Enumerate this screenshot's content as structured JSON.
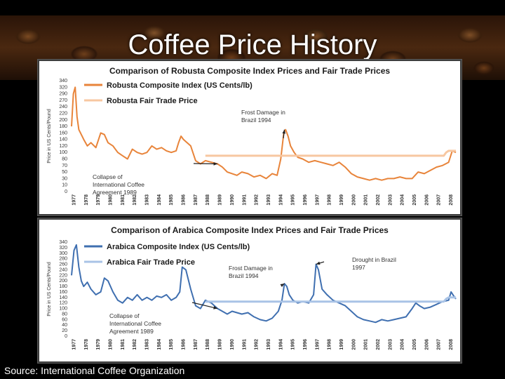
{
  "slide": {
    "title": "Coffee Price History",
    "source": "Source: International Coffee Organization"
  },
  "chart_data": [
    {
      "type": "line",
      "title": "Comparison of Robusta Composite Index Prices and Fair Trade Prices",
      "ylabel": "Price in US Cents/Pound",
      "xlabel": "",
      "ylim": [
        0,
        340
      ],
      "yticks": [
        0,
        10,
        30,
        50,
        70,
        80,
        100,
        120,
        140,
        160,
        180,
        200,
        220,
        240,
        270,
        290,
        320,
        340
      ],
      "xticks": [
        "1977",
        "1978",
        "1979",
        "1980",
        "1981",
        "1982",
        "1983",
        "1984",
        "1985",
        "1986",
        "1987",
        "1988",
        "1989",
        "1990",
        "1991",
        "1992",
        "1993",
        "1994",
        "1995",
        "1996",
        "1997",
        "1998",
        "1999",
        "2000",
        "2001",
        "2002",
        "2003",
        "2004",
        "2005",
        "2006",
        "2007",
        "2008"
      ],
      "legend_position": "top-left",
      "grid": false,
      "series": [
        {
          "name": "Robusta Composite Index (US Cents/lb)",
          "color": "#e8843a",
          "x": [
            1977.0,
            1977.15,
            1977.3,
            1977.45,
            1977.6,
            1977.8,
            1978.0,
            1978.3,
            1978.6,
            1979.0,
            1979.4,
            1979.7,
            1980.0,
            1980.4,
            1980.8,
            1981.2,
            1981.6,
            1982.0,
            1982.4,
            1982.8,
            1983.2,
            1983.6,
            1984.0,
            1984.4,
            1984.8,
            1985.2,
            1985.6,
            1985.8,
            1986.0,
            1986.2,
            1986.5,
            1986.8,
            1987.2,
            1987.6,
            1988.0,
            1988.5,
            1989.0,
            1989.4,
            1989.8,
            1990.2,
            1990.6,
            1991.0,
            1991.5,
            1992.0,
            1992.5,
            1993.0,
            1993.5,
            1993.9,
            1994.2,
            1994.45,
            1994.6,
            1994.8,
            1995.0,
            1995.3,
            1995.6,
            1996.0,
            1996.5,
            1997.0,
            1997.5,
            1998.0,
            1998.5,
            1999.0,
            1999.5,
            2000.0,
            2000.5,
            2001.0,
            2001.5,
            2002.0,
            2002.5,
            2003.0,
            2003.5,
            2004.0,
            2004.5,
            2005.0,
            2005.5,
            2006.0,
            2006.5,
            2007.0,
            2007.5,
            2008.0,
            2008.3,
            2008.6
          ],
          "y": [
            200,
            300,
            320,
            230,
            190,
            175,
            160,
            140,
            150,
            135,
            180,
            175,
            150,
            140,
            120,
            110,
            100,
            130,
            120,
            115,
            120,
            140,
            130,
            135,
            125,
            120,
            125,
            150,
            170,
            160,
            150,
            140,
            95,
            85,
            95,
            90,
            85,
            75,
            60,
            55,
            50,
            60,
            55,
            45,
            50,
            40,
            55,
            50,
            100,
            180,
            190,
            170,
            140,
            120,
            105,
            100,
            90,
            95,
            90,
            85,
            80,
            90,
            75,
            55,
            45,
            40,
            35,
            40,
            35,
            40,
            40,
            45,
            40,
            40,
            60,
            55,
            65,
            75,
            80,
            90,
            125,
            120
          ]
        },
        {
          "name": "Robusta Fair Trade Price",
          "color": "#f7c7a1",
          "x": [
            1988.0,
            2007.6,
            2007.8,
            2008.0,
            2008.6
          ],
          "y": [
            110,
            110,
            120,
            125,
            125
          ]
        }
      ],
      "annotations": [
        {
          "text": [
            "Frost Damage in",
            "Brazil 1994"
          ],
          "x": 1994.5,
          "y": 190
        },
        {
          "text": [
            "Collapse of",
            "International Coffee",
            "Agreement 1989"
          ],
          "x": 1989.0,
          "y": 85
        }
      ]
    },
    {
      "type": "line",
      "title": "Comparison of Arabica Composite Index Prices and Fair Trade Prices",
      "ylabel": "Price in US Cents/Pound",
      "xlabel": "",
      "ylim": [
        0,
        340
      ],
      "yticks": [
        0,
        20,
        40,
        60,
        80,
        100,
        120,
        140,
        160,
        180,
        200,
        220,
        240,
        260,
        280,
        300,
        320,
        340
      ],
      "xticks": [
        "1977",
        "1978",
        "1979",
        "1980",
        "1981",
        "1982",
        "1983",
        "1984",
        "1985",
        "1986",
        "1987",
        "1988",
        "1989",
        "1990",
        "1991",
        "1992",
        "1993",
        "1994",
        "1995",
        "1996",
        "1997",
        "1998",
        "1999",
        "2000",
        "2001",
        "2002",
        "2003",
        "2004",
        "2005",
        "2006",
        "2007",
        "2008"
      ],
      "legend_position": "top-left",
      "grid": false,
      "series": [
        {
          "name": "Arabica Composite Index (US Cents/lb)",
          "color": "#3f6fb0",
          "x": [
            1977.0,
            1977.2,
            1977.4,
            1977.6,
            1977.8,
            1978.0,
            1978.3,
            1978.6,
            1979.0,
            1979.4,
            1979.7,
            1980.0,
            1980.4,
            1980.8,
            1981.2,
            1981.6,
            1982.0,
            1982.4,
            1982.8,
            1983.2,
            1983.6,
            1984.0,
            1984.4,
            1984.8,
            1985.2,
            1985.6,
            1985.9,
            1986.1,
            1986.4,
            1986.8,
            1987.2,
            1987.6,
            1988.0,
            1988.5,
            1989.0,
            1989.4,
            1989.8,
            1990.2,
            1990.6,
            1991.0,
            1991.5,
            1992.0,
            1992.5,
            1993.0,
            1993.5,
            1994.0,
            1994.3,
            1994.5,
            1994.7,
            1994.9,
            1995.2,
            1995.6,
            1996.0,
            1996.5,
            1996.9,
            1997.1,
            1997.3,
            1997.6,
            1998.0,
            1998.5,
            1999.0,
            1999.5,
            2000.0,
            2000.5,
            2001.0,
            2001.5,
            2002.0,
            2002.5,
            2003.0,
            2003.5,
            2004.0,
            2004.5,
            2005.0,
            2005.3,
            2005.6,
            2006.0,
            2006.5,
            2007.0,
            2007.5,
            2008.0,
            2008.2,
            2008.5,
            2008.6
          ],
          "y": [
            220,
            310,
            330,
            250,
            200,
            180,
            195,
            170,
            150,
            160,
            210,
            200,
            160,
            130,
            120,
            140,
            130,
            150,
            130,
            140,
            130,
            145,
            140,
            150,
            130,
            140,
            160,
            250,
            240,
            170,
            110,
            100,
            130,
            120,
            100,
            90,
            80,
            90,
            85,
            80,
            85,
            70,
            60,
            55,
            65,
            90,
            130,
            190,
            180,
            150,
            130,
            120,
            125,
            120,
            150,
            260,
            240,
            170,
            150,
            130,
            120,
            110,
            90,
            70,
            60,
            55,
            50,
            60,
            55,
            60,
            65,
            70,
            100,
            120,
            110,
            100,
            105,
            115,
            125,
            130,
            160,
            140,
            135
          ]
        },
        {
          "name": "Arabica Fair Trade Price",
          "color": "#a9c3e6",
          "x": [
            1988.0,
            2007.6,
            2007.8,
            2008.0,
            2008.6
          ],
          "y": [
            125,
            125,
            135,
            140,
            140
          ]
        }
      ],
      "annotations": [
        {
          "text": [
            "Frost Damage in",
            "Brazil 1994"
          ],
          "x": 1994.5,
          "y": 190
        },
        {
          "text": [
            "Drought in Brazil",
            "1997"
          ],
          "x": 1997.1,
          "y": 260
        },
        {
          "text": [
            "Collapse of",
            "International Coffee",
            "Agreement 1989"
          ],
          "x": 1989.0,
          "y": 100
        }
      ]
    }
  ]
}
